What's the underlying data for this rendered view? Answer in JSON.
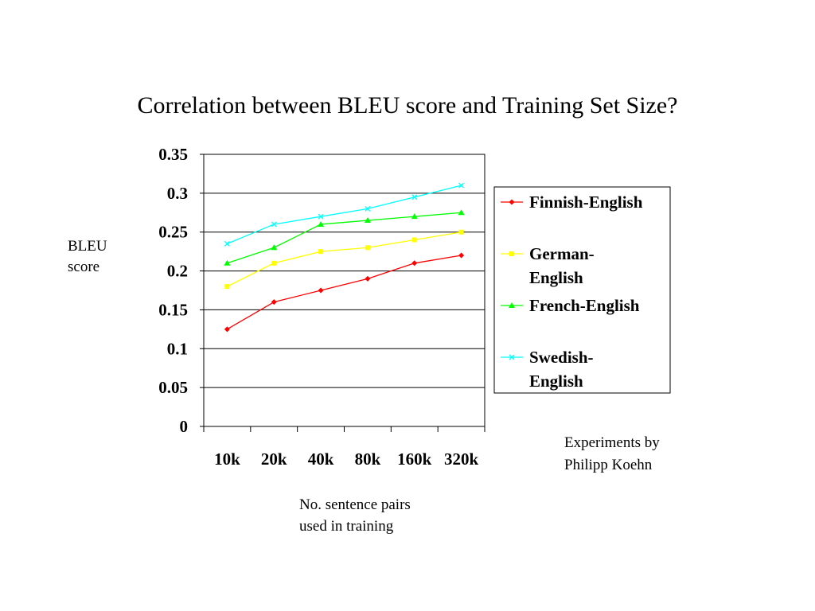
{
  "title": "Correlation between BLEU score and Training Set Size?",
  "ylabel_lines": [
    "BLEU",
    "score"
  ],
  "xlabel_lines": [
    "No. sentence pairs",
    "used in training"
  ],
  "note_lines": [
    "Experiments by",
    "Philipp Koehn"
  ],
  "chart_data": {
    "type": "line",
    "title": "Correlation between BLEU score and Training Set Size?",
    "xlabel": "No. sentence pairs used in training",
    "ylabel": "BLEU score",
    "categories": [
      "10k",
      "20k",
      "40k",
      "80k",
      "160k",
      "320k"
    ],
    "ylim": [
      0,
      0.35
    ],
    "yticks": [
      "0",
      "0.05",
      "0.1",
      "0.15",
      "0.2",
      "0.25",
      "0.3",
      "0.35"
    ],
    "grid": "horizontal major gridlines",
    "legend_position": "right",
    "series": [
      {
        "name": "Finnish-English",
        "legend_lines": [
          "Finnish-English"
        ],
        "color": "#ff0000",
        "marker": "diamond",
        "values": [
          0.125,
          0.16,
          0.175,
          0.19,
          0.21,
          0.22
        ]
      },
      {
        "name": "German-English",
        "legend_lines": [
          "German-",
          "English"
        ],
        "color": "#ffff00",
        "marker": "square",
        "values": [
          0.18,
          0.21,
          0.225,
          0.23,
          0.24,
          0.25
        ]
      },
      {
        "name": "French-English",
        "legend_lines": [
          "French-English"
        ],
        "color": "#00ff00",
        "marker": "triangle",
        "values": [
          0.21,
          0.23,
          0.26,
          0.265,
          0.27,
          0.275
        ]
      },
      {
        "name": "Swedish-English",
        "legend_lines": [
          "Swedish-",
          "English"
        ],
        "color": "#00ffff",
        "marker": "x",
        "values": [
          0.235,
          0.26,
          0.27,
          0.28,
          0.295,
          0.31
        ]
      }
    ]
  }
}
